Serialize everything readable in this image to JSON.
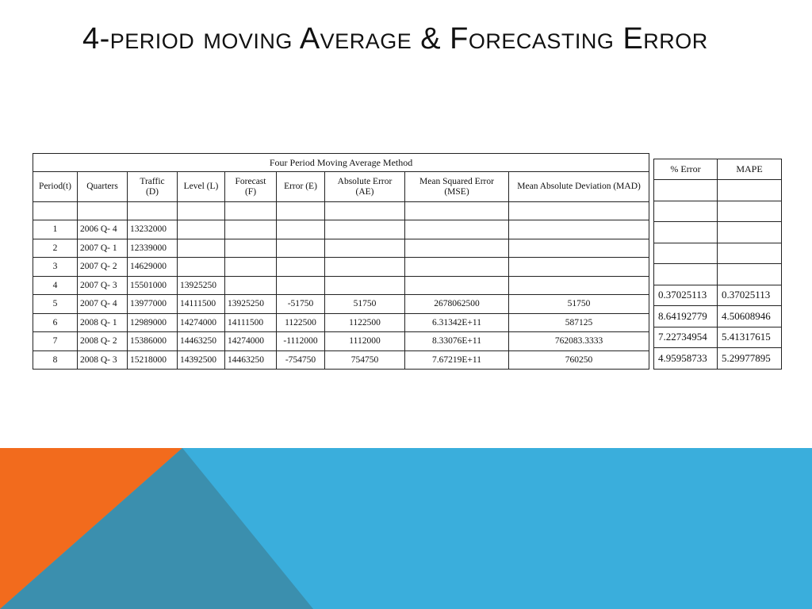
{
  "slide": {
    "title": "4-period moving Average & Forecasting Error"
  },
  "table": {
    "caption": "Four Period Moving Average Method",
    "headers": [
      [
        "Period(t)"
      ],
      [
        "Quarters"
      ],
      [
        "Traffic",
        "(D)"
      ],
      [
        "Level (L)"
      ],
      [
        "Forecast",
        "(F)"
      ],
      [
        "Error (E)"
      ],
      [
        "Absolute Error",
        "(AE)"
      ],
      [
        "Mean Squared Error",
        "(MSE)"
      ],
      [
        "Mean Absolute Deviation (MAD)"
      ]
    ],
    "rows": [
      [
        "1",
        "2006 Q- 4",
        "13232000",
        "",
        "",
        "",
        "",
        "",
        ""
      ],
      [
        "2",
        "2007 Q- 1",
        "12339000",
        "",
        "",
        "",
        "",
        "",
        ""
      ],
      [
        "3",
        "2007 Q- 2",
        "14629000",
        "",
        "",
        "",
        "",
        "",
        ""
      ],
      [
        "4",
        "2007 Q- 3",
        "15501000",
        "13925250",
        "",
        "",
        "",
        "",
        ""
      ],
      [
        "5",
        "2007 Q- 4",
        "13977000",
        "14111500",
        "13925250",
        "-51750",
        "51750",
        "2678062500",
        "51750"
      ],
      [
        "6",
        "2008 Q- 1",
        "12989000",
        "14274000",
        "14111500",
        "1122500",
        "1122500",
        "6.31342E+11",
        "587125"
      ],
      [
        "7",
        "2008 Q- 2",
        "15386000",
        "14463250",
        "14274000",
        "-1112000",
        "1112000",
        "8.33076E+11",
        "762083.3333"
      ],
      [
        "8",
        "2008 Q- 3",
        "15218000",
        "14392500",
        "14463250",
        "-754750",
        "754750",
        "7.67219E+11",
        "760250"
      ]
    ]
  },
  "side_table": {
    "headers": [
      "% Error",
      "MAPE"
    ],
    "rows": [
      [
        "",
        ""
      ],
      [
        "",
        ""
      ],
      [
        "",
        ""
      ],
      [
        "",
        ""
      ],
      [
        "",
        ""
      ],
      [
        "0.37025113",
        "0.37025113"
      ],
      [
        "8.64192779",
        "4.50608946"
      ],
      [
        "7.22734954",
        "5.41317615"
      ],
      [
        "4.95958733",
        "5.29977895"
      ]
    ]
  },
  "colors": {
    "accent_orange": "#f26b1d",
    "accent_blue": "#3aaedc",
    "accent_teal": "#3b8fae"
  }
}
